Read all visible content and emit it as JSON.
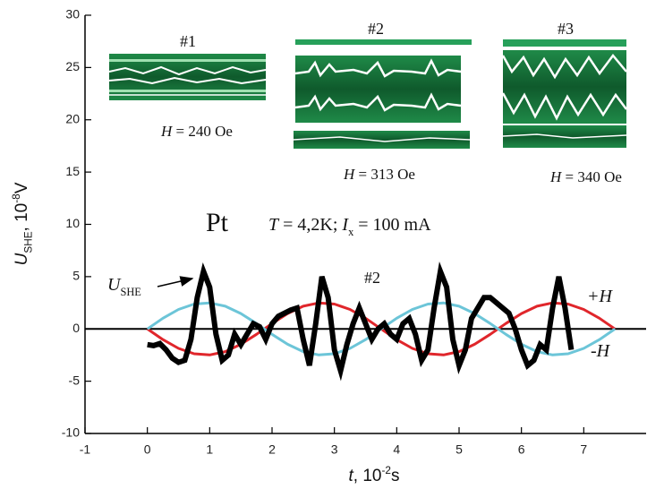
{
  "chart_data": {
    "type": "line",
    "xlabel": {
      "symbol": "t",
      "text": ", 10",
      "superscript": "-2",
      "unit": "s"
    },
    "ylabel": {
      "symbol": "U",
      "subscript": "SHE",
      "text": ", 10",
      "superscript": "-8",
      "unit": "V"
    },
    "xlim": [
      -1,
      8
    ],
    "ylim": [
      -10,
      30
    ],
    "xticks": [
      -1,
      0,
      1,
      2,
      3,
      4,
      5,
      6,
      7
    ],
    "yticks": [
      -10,
      -5,
      0,
      5,
      10,
      15,
      20,
      25,
      30
    ],
    "zero_line": true,
    "series": [
      {
        "color": "#000000",
        "marker": "square",
        "x": [
          0,
          0.1,
          0.2,
          0.3,
          0.4,
          0.5,
          0.6,
          0.7,
          0.8,
          0.9,
          1.0,
          1.1,
          1.2,
          1.3,
          1.4,
          1.5,
          1.6,
          1.7,
          1.8,
          1.9,
          2.0,
          2.1,
          2.2,
          2.3,
          2.4,
          2.5,
          2.6,
          2.7,
          2.8,
          2.9,
          3.0,
          3.1,
          3.2,
          3.3,
          3.4,
          3.5,
          3.6,
          3.7,
          3.8,
          3.9,
          4.0,
          4.1,
          4.2,
          4.3,
          4.4,
          4.5,
          4.6,
          4.7,
          4.8,
          4.9,
          5.0,
          5.1,
          5.2,
          5.3,
          5.4,
          5.5,
          5.6,
          5.7,
          5.8,
          5.9,
          6.0,
          6.1,
          6.2,
          6.3,
          6.4,
          6.5,
          6.6,
          6.7,
          6.8
        ],
        "values": [
          -1.5,
          -1.6,
          -1.4,
          -2.0,
          -2.8,
          -3.2,
          -3.0,
          -1.0,
          3.0,
          5.5,
          4.0,
          -0.5,
          -3.0,
          -2.5,
          -0.5,
          -1.5,
          -0.5,
          0.5,
          0.2,
          -1.0,
          0.5,
          1.2,
          1.5,
          1.8,
          2.0,
          -1.0,
          -3.5,
          0.5,
          5.0,
          3.0,
          -2.0,
          -4.0,
          -1.5,
          0.5,
          2.0,
          0.5,
          -1.0,
          0.0,
          0.5,
          -0.5,
          -1.0,
          0.5,
          1.0,
          -0.5,
          -3.0,
          -2.0,
          2.0,
          5.5,
          4.0,
          -1.0,
          -3.5,
          -2.0,
          1.0,
          2.0,
          3.0,
          3.0,
          2.5,
          2.0,
          1.5,
          0.0,
          -2.0,
          -3.5,
          -3.0,
          -1.5,
          -2.0,
          2.0,
          5.0,
          2.0,
          -2.0
        ]
      },
      {
        "name": "+H",
        "color": "#e0262b",
        "x": [
          0,
          0.25,
          0.5,
          0.75,
          1,
          1.25,
          1.5,
          1.75,
          2,
          2.25,
          2.5,
          2.75,
          3,
          3.25,
          3.5,
          3.75,
          4,
          4.25,
          4.5,
          4.75,
          5,
          5.25,
          5.5,
          5.75,
          6,
          6.25,
          6.5,
          6.75,
          7,
          7.25,
          7.5
        ],
        "values": [
          0,
          -1.02,
          -1.86,
          -2.38,
          -2.49,
          -2.17,
          -1.47,
          -0.52,
          0.52,
          1.47,
          2.17,
          2.49,
          2.38,
          1.86,
          1.02,
          0,
          -1.02,
          -1.86,
          -2.38,
          -2.49,
          -2.17,
          -1.47,
          -0.52,
          0.52,
          1.47,
          2.17,
          2.49,
          2.38,
          1.86,
          1.02,
          0
        ]
      },
      {
        "name": "-H",
        "color": "#6cc5d8",
        "x": [
          0,
          0.25,
          0.5,
          0.75,
          1,
          1.25,
          1.5,
          1.75,
          2,
          2.25,
          2.5,
          2.75,
          3,
          3.25,
          3.5,
          3.75,
          4,
          4.25,
          4.5,
          4.75,
          5,
          5.25,
          5.5,
          5.75,
          6,
          6.25,
          6.5,
          6.75,
          7,
          7.25,
          7.5
        ],
        "values": [
          0,
          1.02,
          1.86,
          2.38,
          2.49,
          2.17,
          1.47,
          0.52,
          -0.52,
          -1.47,
          -2.17,
          -2.49,
          -2.38,
          -1.86,
          -1.02,
          0,
          1.02,
          1.86,
          2.38,
          2.49,
          2.17,
          1.47,
          0.52,
          -0.52,
          -1.47,
          -2.17,
          -2.49,
          -2.38,
          -1.86,
          -1.02,
          0
        ]
      }
    ],
    "annotations": {
      "material": "Pt",
      "conditions": {
        "t_symbol": "T",
        "t_text": " = 4,2K; ",
        "i_symbol": "I",
        "i_subscript": "x",
        "i_text": " = 100 mA"
      },
      "arrow_label": {
        "symbol": "U",
        "subscript": "SHE"
      },
      "curve_label": "#2"
    },
    "insets": [
      {
        "label": "#1",
        "field_symbol": "H",
        "field_text": " = 240 Oe"
      },
      {
        "label": "#2",
        "field_symbol": "H",
        "field_text": " = 313 Oe"
      },
      {
        "label": "#3",
        "field_symbol": "H",
        "field_text": " = 340 Oe"
      }
    ]
  }
}
